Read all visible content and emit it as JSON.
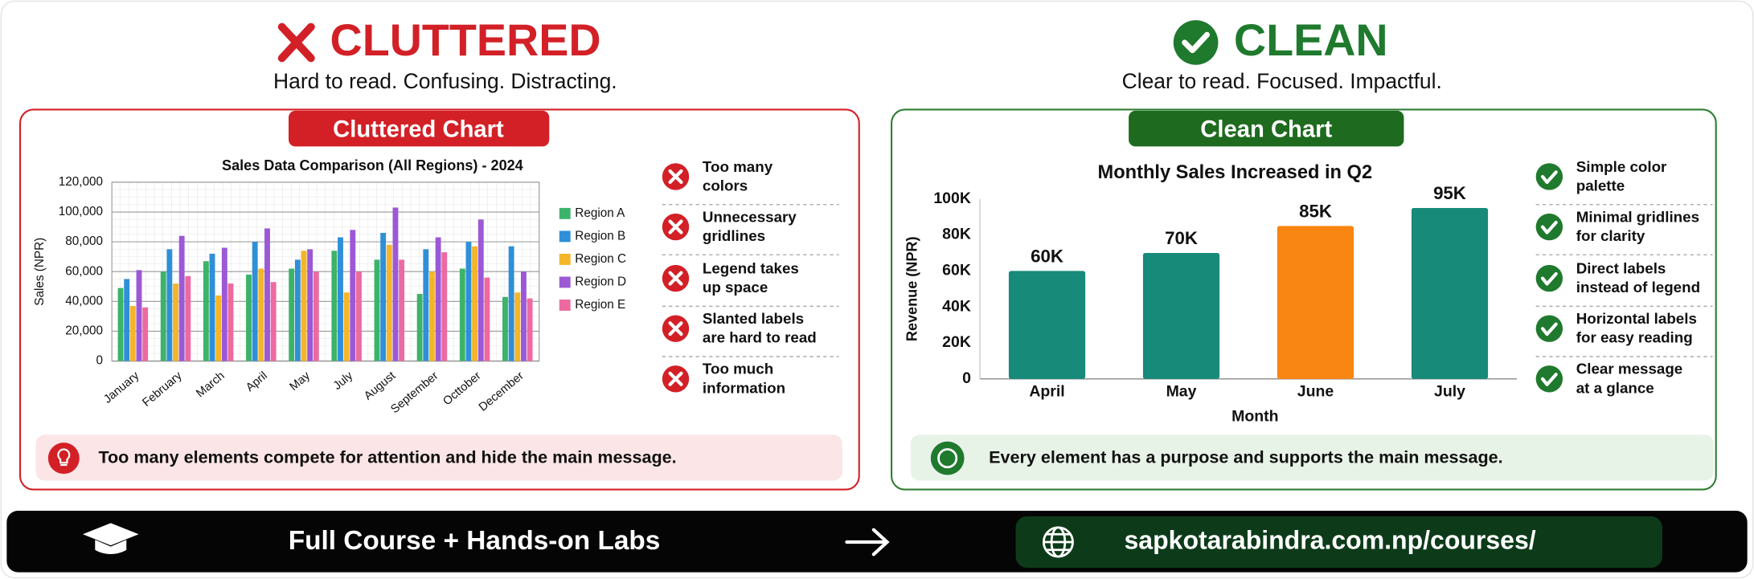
{
  "left": {
    "heading": "CLUTTERED",
    "subheading": "Hard to read. Confusing. Distracting.",
    "tag": "Cluttered Chart",
    "items": [
      [
        "Too many",
        "colors"
      ],
      [
        "Unnecessary",
        "gridlines"
      ],
      [
        "Legend takes",
        "up space"
      ],
      [
        "Slanted labels",
        "are hard to read"
      ],
      [
        "Too much",
        "information"
      ]
    ],
    "note": "Too many elements compete for attention and hide the main message."
  },
  "right": {
    "heading": "CLEAN",
    "subheading": "Clear to read. Focused. Impactful.",
    "tag": "Clean Chart",
    "items": [
      [
        "Simple color",
        "palette"
      ],
      [
        "Minimal gridlines",
        "for clarity"
      ],
      [
        "Direct labels",
        "instead of legend"
      ],
      [
        "Horizontal labels",
        "for easy reading"
      ],
      [
        "Clear message",
        "at a glance"
      ]
    ],
    "note": "Every element has a purpose and supports the main message."
  },
  "footer": {
    "course": "Full Course + Hands-on Labs",
    "url": "sapkotarabindra.com.np/courses/"
  },
  "chart_data": [
    {
      "type": "bar",
      "title": "Sales Data Comparison (All Regions) - 2024",
      "y_label": "Sales (NPR)",
      "categories": [
        "January",
        "February",
        "March",
        "April",
        "May",
        "July",
        "August",
        "September",
        "Octtober",
        "December"
      ],
      "series": [
        {
          "name": "Region A",
          "color": "#3cb36a",
          "values": [
            49000,
            60000,
            67000,
            58000,
            62000,
            74000,
            68000,
            45000,
            62000,
            43000
          ]
        },
        {
          "name": "Region B",
          "color": "#2f8fd8",
          "values": [
            55000,
            75000,
            72000,
            80000,
            68000,
            83000,
            86000,
            75000,
            80000,
            77000
          ]
        },
        {
          "name": "Region C",
          "color": "#f5b528",
          "values": [
            37000,
            52000,
            44000,
            62000,
            74000,
            46000,
            78000,
            60000,
            77000,
            46000
          ]
        },
        {
          "name": "Region D",
          "color": "#9b59d6",
          "values": [
            61000,
            84000,
            76000,
            89000,
            75000,
            88000,
            103000,
            83000,
            95000,
            60000
          ]
        },
        {
          "name": "Region E",
          "color": "#ec6aa0",
          "values": [
            36000,
            57000,
            52000,
            53000,
            60000,
            60000,
            68000,
            73000,
            56000,
            42000
          ]
        }
      ],
      "ylim": [
        0,
        120000
      ],
      "yticks": [
        0,
        {
          "value": 20000,
          "label": "20,000"
        },
        {
          "value": 40000,
          "label": "40,000"
        },
        {
          "value": 60000,
          "label": "60,000"
        },
        {
          "value": 80000,
          "label": "80,000"
        },
        {
          "value": 100000,
          "label": "100,000"
        },
        {
          "value": 120000,
          "label": "120,000"
        }
      ],
      "grid": true,
      "legend": "right"
    },
    {
      "type": "bar",
      "title": "Monthly Sales Increased in Q2",
      "x_label": "Month",
      "y_label": "Revenue (NPR)",
      "categories": [
        "April",
        "May",
        "June",
        "July"
      ],
      "values": [
        60000,
        70000,
        85000,
        95000
      ],
      "value_labels": [
        "60K",
        "70K",
        "85K",
        "95K"
      ],
      "colors": [
        "#178a7a",
        "#178a7a",
        "#f98512",
        "#178a7a"
      ],
      "ylim": [
        0,
        100000
      ],
      "yticks": [
        0,
        {
          "value": 20000,
          "label": "20K"
        },
        {
          "value": 40000,
          "label": "40K"
        },
        {
          "value": 60000,
          "label": "60K"
        },
        {
          "value": 80000,
          "label": "80K"
        },
        {
          "value": 100000,
          "label": "100K"
        }
      ],
      "grid": false
    }
  ]
}
